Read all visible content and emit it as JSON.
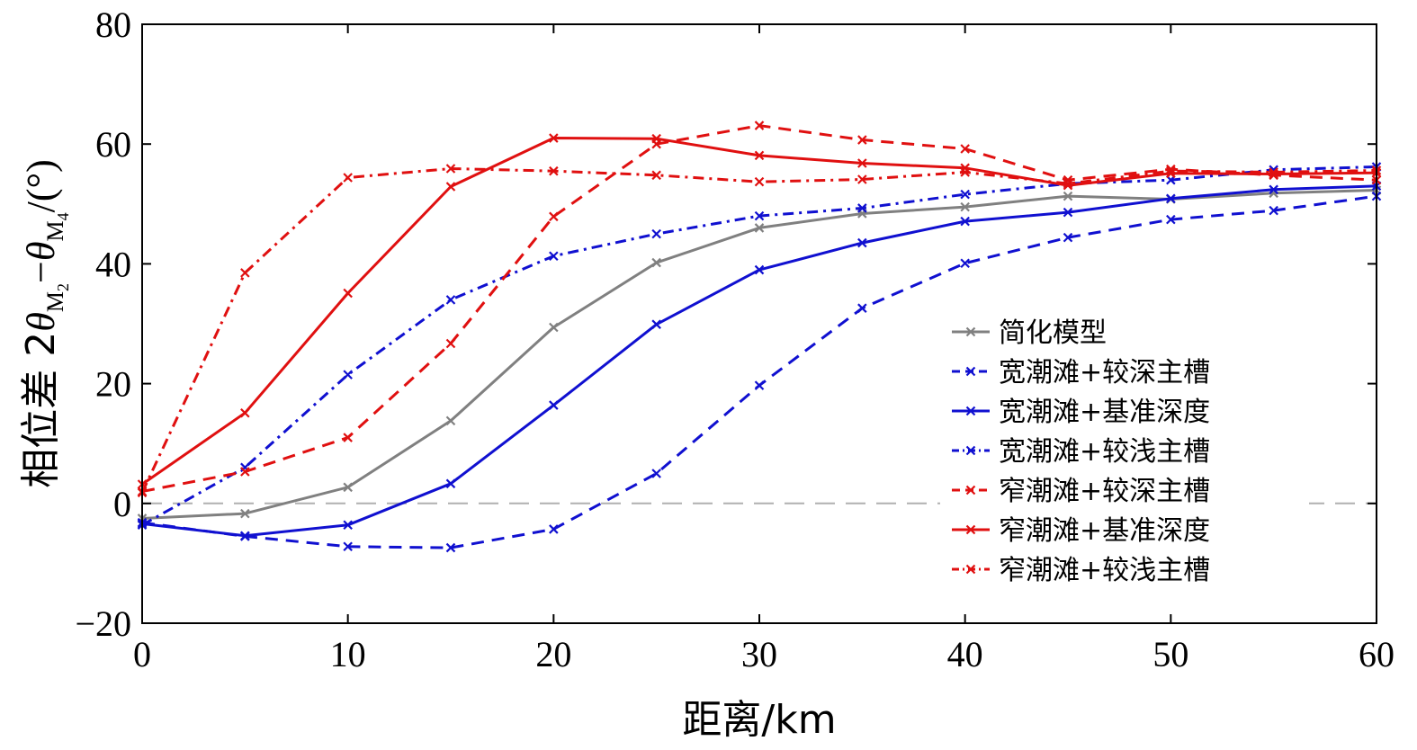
{
  "chart_data": {
    "type": "line",
    "xlabel": "距离/km",
    "ylabel": {
      "prefix": "相位差 2",
      "theta": "θ",
      "sub1": "M",
      "sub1sub": "2",
      "minus": "−",
      "sub2": "M",
      "sub2sub": "4",
      "suffix": "/(°)"
    },
    "xlim": [
      0,
      60
    ],
    "ylim": [
      -20,
      80
    ],
    "xticks": [
      0,
      10,
      20,
      30,
      40,
      50,
      60
    ],
    "yticks": [
      -20,
      0,
      20,
      40,
      60,
      80
    ],
    "ytick_labels": [
      "−20",
      "0",
      "20",
      "40",
      "60",
      "80"
    ],
    "x": [
      0,
      5,
      10,
      15,
      20,
      25,
      30,
      35,
      40,
      45,
      50,
      55,
      60
    ],
    "reference_line_y": 0,
    "legend_position": "center-right",
    "series": [
      {
        "name": "简化模型",
        "color": "#808080",
        "dash": "solid",
        "values": [
          -2.5,
          -1.7,
          2.7,
          13.8,
          29.4,
          40.2,
          46.0,
          48.4,
          49.5,
          51.3,
          50.8,
          51.8,
          52.3
        ]
      },
      {
        "name": "宽潮滩+较深主槽",
        "color": "#1010d0",
        "dash": "dashed",
        "values": [
          -3.2,
          -5.5,
          -7.2,
          -7.4,
          -4.3,
          5.0,
          19.7,
          32.6,
          40.1,
          44.4,
          47.4,
          48.9,
          51.3
        ]
      },
      {
        "name": "宽潮滩+基准深度",
        "color": "#1010d0",
        "dash": "solid",
        "values": [
          -3.4,
          -5.4,
          -3.6,
          3.3,
          16.4,
          29.9,
          39.0,
          43.5,
          47.1,
          48.6,
          50.9,
          52.4,
          53.0
        ]
      },
      {
        "name": "宽潮滩+较浅主槽",
        "color": "#1010d0",
        "dash": "dashdot",
        "values": [
          -3.6,
          6.0,
          21.5,
          34.0,
          41.3,
          45.0,
          48.0,
          49.3,
          51.6,
          53.4,
          54.0,
          55.7,
          56.2
        ]
      },
      {
        "name": "窄潮滩+较深主槽",
        "color": "#e01010",
        "dash": "dashed",
        "values": [
          2.0,
          5.3,
          11.0,
          26.7,
          47.9,
          60.0,
          63.1,
          60.7,
          59.2,
          54.0,
          55.8,
          54.8,
          54.0
        ]
      },
      {
        "name": "窄潮滩+基准深度",
        "color": "#e01010",
        "dash": "solid",
        "values": [
          3.2,
          15.1,
          35.1,
          52.9,
          61.0,
          60.9,
          58.1,
          56.8,
          56.0,
          53.1,
          55.1,
          55.0,
          55.2
        ]
      },
      {
        "name": "窄潮滩+较浅主槽",
        "color": "#e01010",
        "dash": "dashdot",
        "values": [
          1.8,
          38.5,
          54.4,
          55.9,
          55.5,
          54.8,
          53.7,
          54.1,
          55.3,
          53.4,
          55.5,
          55.3,
          55.6
        ]
      }
    ]
  }
}
